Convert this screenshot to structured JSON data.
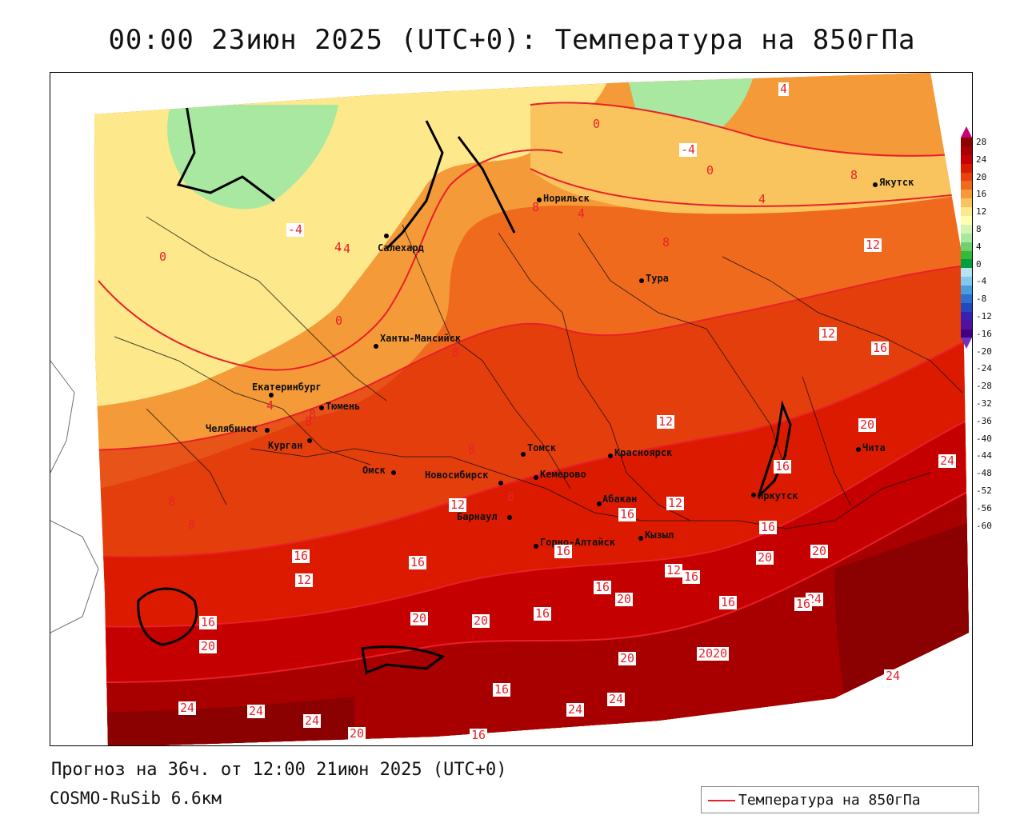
{
  "title": "00:00 23июн 2025 (UTC+0): Температура на 850гПа",
  "footer": {
    "forecast": "Прогноз на 36ч. от 12:00 21июн 2025 (UTC+0)",
    "model": "COSMO-RuSib 6.6км"
  },
  "legend": {
    "label": "Температура на 850гПа",
    "line_color": "#e8202a"
  },
  "colorbar": {
    "ticks": [
      "28",
      "24",
      "20",
      "16",
      "12",
      "8",
      "4",
      "0",
      "-4",
      "-8",
      "-12",
      "-16",
      "-20",
      "-24",
      "-28",
      "-32",
      "-36",
      "-40",
      "-44",
      "-48",
      "-52",
      "-56",
      "-60"
    ],
    "colors": [
      "#c8007a",
      "#8b0000",
      "#a80000",
      "#c40000",
      "#dc1a00",
      "#e84010",
      "#f06a1e",
      "#f59a38",
      "#f9c45e",
      "#fde88c",
      "#ffffb4",
      "#d4f4b4",
      "#a8e8a0",
      "#70d070",
      "#38b838",
      "#00a040",
      "#b4e4f4",
      "#80c8ec",
      "#4c9ce0",
      "#2c70d0",
      "#2448c0",
      "#3820b0",
      "#5010a0",
      "#400080",
      "#7030c0"
    ]
  },
  "cities": [
    {
      "name": "Норильск"
    },
    {
      "name": "Якутск"
    },
    {
      "name": "Салехард"
    },
    {
      "name": "Тура"
    },
    {
      "name": "Ханты-Мансийск"
    },
    {
      "name": "Екатеринбург"
    },
    {
      "name": "Тюмень"
    },
    {
      "name": "Челябинск"
    },
    {
      "name": "Курган"
    },
    {
      "name": "Омск"
    },
    {
      "name": "Томск"
    },
    {
      "name": "Красноярск"
    },
    {
      "name": "Новосибирск"
    },
    {
      "name": "Кемерово"
    },
    {
      "name": "Барнаул"
    },
    {
      "name": "Абакан"
    },
    {
      "name": "Иркутск"
    },
    {
      "name": "Чита"
    },
    {
      "name": "Кызыл"
    },
    {
      "name": "Горно-Алтайск"
    }
  ],
  "isotherm_labels": [
    "0",
    "-4",
    "4",
    "8",
    "-4",
    "0",
    "4",
    "8",
    "-4",
    "4",
    "0",
    "8",
    "8",
    "12",
    "12",
    "16",
    "8",
    "8",
    "4",
    "0",
    "8",
    "4",
    "8",
    "8",
    "8",
    "12",
    "12",
    "16",
    "12",
    "16",
    "20",
    "16",
    "24",
    "16",
    "16",
    "12",
    "12",
    "16",
    "16",
    "16",
    "20",
    "16",
    "20",
    "20",
    "16",
    "24",
    "20",
    "20",
    "16",
    "20",
    "24",
    "2020",
    "20",
    "24",
    "24",
    "24",
    "16",
    "24",
    "24",
    "20",
    "16",
    "16"
  ]
}
